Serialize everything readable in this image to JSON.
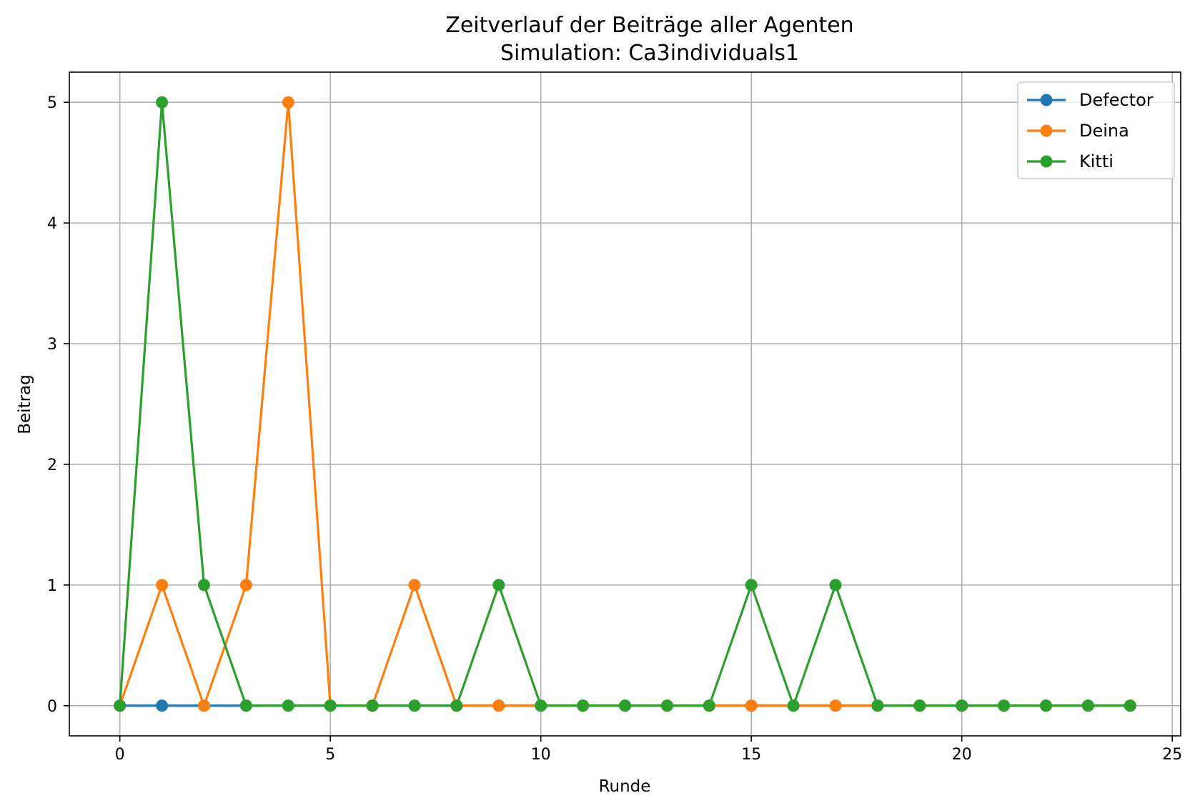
{
  "chart_data": {
    "type": "line",
    "title": "Zeitverlauf der Beiträge aller Agenten",
    "subtitle": "Simulation: Ca3individuals1",
    "xlabel": "Runde",
    "ylabel": "Beitrag",
    "xlim": [
      -1.2,
      25.2
    ],
    "ylim": [
      -0.25,
      5.25
    ],
    "xticks": [
      0,
      5,
      10,
      15,
      20,
      25
    ],
    "yticks": [
      0,
      1,
      2,
      3,
      4,
      5
    ],
    "grid": true,
    "legend_position": "top-right",
    "x": [
      0,
      1,
      2,
      3,
      4,
      5,
      6,
      7,
      8,
      9,
      10,
      11,
      12,
      13,
      14,
      15,
      16,
      17,
      18,
      19,
      20,
      21,
      22,
      23,
      24
    ],
    "series": [
      {
        "name": "Defector",
        "color": "#1f77b4",
        "values": [
          0,
          0,
          0,
          0,
          0,
          0,
          0,
          0,
          0,
          0,
          0,
          0,
          0,
          0,
          0,
          0,
          0,
          0,
          0,
          0,
          0,
          0,
          0,
          0,
          0
        ]
      },
      {
        "name": "Deina",
        "color": "#ff7f0e",
        "values": [
          0,
          1,
          0,
          1,
          5,
          0,
          0,
          1,
          0,
          0,
          0,
          0,
          0,
          0,
          0,
          0,
          0,
          0,
          0,
          0,
          0,
          0,
          0,
          0,
          0
        ]
      },
      {
        "name": "Kitti",
        "color": "#2ca02c",
        "values": [
          0,
          5,
          1,
          0,
          0,
          0,
          0,
          0,
          0,
          1,
          0,
          0,
          0,
          0,
          0,
          1,
          0,
          1,
          0,
          0,
          0,
          0,
          0,
          0,
          0
        ]
      }
    ]
  }
}
